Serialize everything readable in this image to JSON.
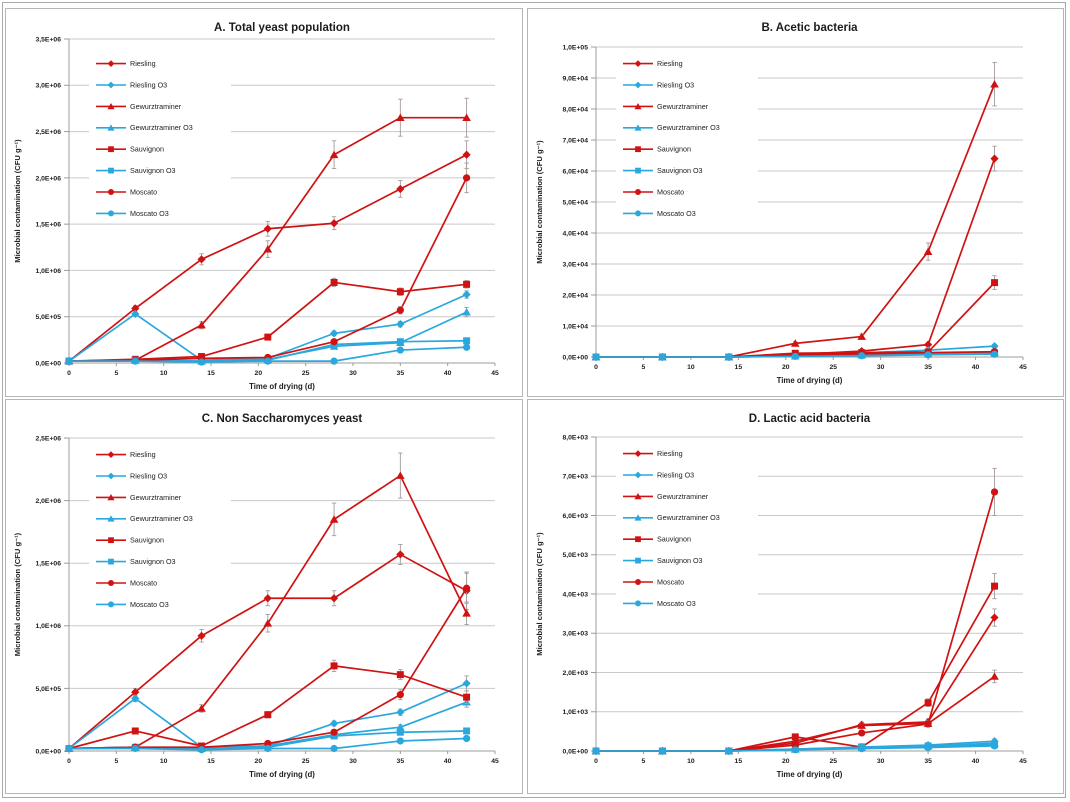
{
  "figure": {
    "background": "#ffffff",
    "outer_border_color": "#a9a9a9",
    "panel_border_color": "#b5b5b5"
  },
  "colors": {
    "red": "#d01212",
    "blue": "#2aa8dd",
    "grid": "#c9c9c9",
    "axis": "#9c9c9c",
    "error": "#a59a9a",
    "text": "#1c1c1c"
  },
  "chart_data": [
    {
      "type": "line",
      "title": "A. Total yeast population",
      "xlabel": "Time of drying (d)",
      "ylabel": "Microbial contamination (CFU g⁻¹)",
      "x": [
        0,
        7,
        14,
        21,
        28,
        35,
        42
      ],
      "xlim": [
        0,
        45
      ],
      "xticks": [
        0,
        5,
        10,
        15,
        20,
        25,
        30,
        35,
        40,
        45
      ],
      "ylim": [
        0,
        3500000
      ],
      "yticks": [
        0,
        500000,
        1000000,
        1500000,
        2000000,
        2500000,
        3000000,
        3500000
      ],
      "ytick_labels": [
        "0,0E+00",
        "5,0E+05",
        "1,0E+06",
        "1,5E+06",
        "2,0E+06",
        "2,5E+06",
        "3,0E+06",
        "3,5E+06"
      ],
      "grid": "horizontal",
      "legend_position": "upper-left-inside",
      "series": [
        {
          "name": "Riesling",
          "color_key": "red",
          "marker": "diamond",
          "values": [
            20000,
            590000,
            1120000,
            1450000,
            1510000,
            1880000,
            2250000
          ],
          "err": [
            0,
            30000,
            60000,
            80000,
            70000,
            90000,
            150000
          ]
        },
        {
          "name": "Riesling O3",
          "color_key": "blue",
          "marker": "diamond",
          "values": [
            20000,
            530000,
            30000,
            50000,
            320000,
            420000,
            740000
          ],
          "err": [
            0,
            20000,
            0,
            0,
            25000,
            30000,
            40000
          ]
        },
        {
          "name": "Gewurztraminer",
          "color_key": "red",
          "marker": "triangle",
          "values": [
            20000,
            30000,
            410000,
            1230000,
            2250000,
            2650000,
            2650000
          ],
          "err": [
            0,
            0,
            40000,
            90000,
            150000,
            200000,
            210000
          ]
        },
        {
          "name": "Gewurztraminer O3",
          "color_key": "blue",
          "marker": "triangle",
          "values": [
            20000,
            30000,
            20000,
            40000,
            180000,
            220000,
            550000
          ],
          "err": [
            0,
            0,
            0,
            0,
            20000,
            25000,
            50000
          ]
        },
        {
          "name": "Sauvignon",
          "color_key": "red",
          "marker": "square",
          "values": [
            20000,
            40000,
            70000,
            280000,
            870000,
            770000,
            850000
          ],
          "err": [
            0,
            0,
            0,
            25000,
            45000,
            40000,
            40000
          ]
        },
        {
          "name": "Sauvignon O3",
          "color_key": "blue",
          "marker": "square",
          "values": [
            20000,
            30000,
            20000,
            30000,
            200000,
            230000,
            240000
          ],
          "err": [
            0,
            0,
            0,
            0,
            20000,
            20000,
            25000
          ]
        },
        {
          "name": "Moscato",
          "color_key": "red",
          "marker": "circle",
          "values": [
            20000,
            30000,
            50000,
            60000,
            230000,
            570000,
            2000000
          ],
          "err": [
            0,
            0,
            0,
            0,
            25000,
            40000,
            160000
          ]
        },
        {
          "name": "Moscato O3",
          "color_key": "blue",
          "marker": "circle",
          "values": [
            20000,
            20000,
            10000,
            20000,
            20000,
            140000,
            170000
          ],
          "err": [
            0,
            0,
            0,
            0,
            0,
            15000,
            20000
          ]
        }
      ]
    },
    {
      "type": "line",
      "title": "B. Acetic bacteria",
      "xlabel": "Time of drying (d)",
      "ylabel": "Microbial contamination (CFU g⁻¹)",
      "x": [
        0,
        7,
        14,
        21,
        28,
        35,
        42
      ],
      "xlim": [
        0,
        45
      ],
      "xticks": [
        0,
        5,
        10,
        15,
        20,
        25,
        30,
        35,
        40,
        45
      ],
      "ylim": [
        0,
        100000
      ],
      "yticks": [
        0,
        10000,
        20000,
        30000,
        40000,
        50000,
        60000,
        70000,
        80000,
        90000,
        100000
      ],
      "ytick_labels": [
        "0,0E+00",
        "1,0E+04",
        "2,0E+04",
        "3,0E+04",
        "4,0E+04",
        "5,0E+04",
        "6,0E+04",
        "7,0E+04",
        "8,0E+04",
        "9,0E+04",
        "1,0E+05"
      ],
      "grid": "horizontal",
      "legend_position": "upper-left-inside",
      "series": [
        {
          "name": "Riesling",
          "color_key": "red",
          "marker": "diamond",
          "values": [
            0,
            0,
            0,
            800,
            1900,
            4000,
            64000
          ],
          "err": [
            0,
            0,
            0,
            0,
            300,
            500,
            4000
          ]
        },
        {
          "name": "Riesling O3",
          "color_key": "blue",
          "marker": "diamond",
          "values": [
            0,
            0,
            0,
            400,
            1300,
            2200,
            3500
          ],
          "err": [
            0,
            0,
            0,
            0,
            0,
            0,
            500
          ]
        },
        {
          "name": "Gewurztraminer",
          "color_key": "red",
          "marker": "triangle",
          "values": [
            0,
            0,
            0,
            4400,
            6600,
            34000,
            88000
          ],
          "err": [
            0,
            0,
            0,
            500,
            800,
            2800,
            7000
          ]
        },
        {
          "name": "Gewurztraminer O3",
          "color_key": "blue",
          "marker": "triangle",
          "values": [
            0,
            0,
            0,
            300,
            700,
            1000,
            1400
          ],
          "err": [
            0,
            0,
            0,
            0,
            0,
            0,
            300
          ]
        },
        {
          "name": "Sauvignon",
          "color_key": "red",
          "marker": "square",
          "values": [
            0,
            0,
            0,
            1200,
            1400,
            1600,
            24000
          ],
          "err": [
            0,
            0,
            0,
            0,
            0,
            300,
            2200
          ]
        },
        {
          "name": "Sauvignon O3",
          "color_key": "blue",
          "marker": "square",
          "values": [
            0,
            0,
            0,
            300,
            600,
            900,
            1300
          ],
          "err": [
            0,
            0,
            0,
            0,
            0,
            0,
            200
          ]
        },
        {
          "name": "Moscato",
          "color_key": "red",
          "marker": "circle",
          "values": [
            0,
            0,
            0,
            600,
            1000,
            1400,
            1700
          ],
          "err": [
            0,
            0,
            0,
            0,
            0,
            0,
            300
          ]
        },
        {
          "name": "Moscato O3",
          "color_key": "blue",
          "marker": "circle",
          "values": [
            0,
            0,
            0,
            200,
            400,
            700,
            900
          ],
          "err": [
            0,
            0,
            0,
            0,
            0,
            0,
            0
          ]
        }
      ]
    },
    {
      "type": "line",
      "title": "C. Non Saccharomyces yeast",
      "xlabel": "Time of drying (d)",
      "ylabel": "Microbial contamination (CFU g⁻¹)",
      "x": [
        0,
        7,
        14,
        21,
        28,
        35,
        42
      ],
      "xlim": [
        0,
        45
      ],
      "xticks": [
        0,
        5,
        10,
        15,
        20,
        25,
        30,
        35,
        40,
        45
      ],
      "ylim": [
        0,
        2500000
      ],
      "yticks": [
        0,
        500000,
        1000000,
        1500000,
        2000000,
        2500000
      ],
      "ytick_labels": [
        "0,0E+00",
        "5,0E+05",
        "1,0E+06",
        "1,5E+06",
        "2,0E+06",
        "2,5E+06"
      ],
      "grid": "horizontal",
      "legend_position": "upper-left-inside",
      "series": [
        {
          "name": "Riesling",
          "color_key": "red",
          "marker": "diamond",
          "values": [
            20000,
            470000,
            920000,
            1220000,
            1220000,
            1570000,
            1280000
          ],
          "err": [
            0,
            30000,
            50000,
            60000,
            60000,
            80000,
            150000
          ]
        },
        {
          "name": "Riesling O3",
          "color_key": "blue",
          "marker": "diamond",
          "values": [
            20000,
            420000,
            30000,
            40000,
            220000,
            310000,
            540000
          ],
          "err": [
            0,
            25000,
            0,
            0,
            20000,
            25000,
            60000
          ]
        },
        {
          "name": "Gewurztraminer",
          "color_key": "red",
          "marker": "triangle",
          "values": [
            20000,
            30000,
            340000,
            1020000,
            1850000,
            2200000,
            1100000
          ],
          "err": [
            0,
            0,
            30000,
            70000,
            130000,
            180000,
            90000
          ]
        },
        {
          "name": "Gewurztraminer O3",
          "color_key": "blue",
          "marker": "triangle",
          "values": [
            20000,
            30000,
            20000,
            40000,
            130000,
            190000,
            390000
          ],
          "err": [
            0,
            0,
            0,
            0,
            0,
            20000,
            40000
          ]
        },
        {
          "name": "Sauvignon",
          "color_key": "red",
          "marker": "square",
          "values": [
            20000,
            160000,
            40000,
            290000,
            680000,
            610000,
            430000
          ],
          "err": [
            0,
            20000,
            0,
            25000,
            45000,
            40000,
            50000
          ]
        },
        {
          "name": "Sauvignon O3",
          "color_key": "blue",
          "marker": "square",
          "values": [
            20000,
            30000,
            20000,
            30000,
            120000,
            150000,
            160000
          ],
          "err": [
            0,
            0,
            0,
            0,
            0,
            0,
            20000
          ]
        },
        {
          "name": "Moscato",
          "color_key": "red",
          "marker": "circle",
          "values": [
            20000,
            30000,
            30000,
            60000,
            150000,
            450000,
            1300000
          ],
          "err": [
            0,
            0,
            0,
            0,
            20000,
            40000,
            120000
          ]
        },
        {
          "name": "Moscato O3",
          "color_key": "blue",
          "marker": "circle",
          "values": [
            20000,
            20000,
            10000,
            20000,
            20000,
            80000,
            100000
          ],
          "err": [
            0,
            0,
            0,
            0,
            0,
            0,
            15000
          ]
        }
      ]
    },
    {
      "type": "line",
      "title": "D. Lactic acid bacteria",
      "xlabel": "Time of drying (d)",
      "ylabel": "Microbial contamination (CFU g⁻¹)",
      "x": [
        0,
        7,
        14,
        21,
        28,
        35,
        42
      ],
      "xlim": [
        0,
        45
      ],
      "xticks": [
        0,
        5,
        10,
        15,
        20,
        25,
        30,
        35,
        40,
        45
      ],
      "ylim": [
        0,
        8000
      ],
      "yticks": [
        0,
        1000,
        2000,
        3000,
        4000,
        5000,
        6000,
        7000,
        8000
      ],
      "ytick_labels": [
        "0,0E+00",
        "1,0E+03",
        "2,0E+03",
        "3,0E+03",
        "4,0E+03",
        "5,0E+03",
        "6,0E+03",
        "7,0E+03",
        "8,0E+03"
      ],
      "grid": "horizontal",
      "legend_position": "upper-left-inside",
      "series": [
        {
          "name": "Riesling",
          "color_key": "red",
          "marker": "diamond",
          "values": [
            0,
            0,
            0,
            200,
            670,
            740,
            3400
          ],
          "err": [
            0,
            0,
            0,
            0,
            60,
            80,
            220
          ]
        },
        {
          "name": "Riesling O3",
          "color_key": "blue",
          "marker": "diamond",
          "values": [
            0,
            0,
            0,
            50,
            100,
            150,
            250
          ],
          "err": [
            0,
            0,
            0,
            0,
            0,
            0,
            60
          ]
        },
        {
          "name": "Gewurztraminer",
          "color_key": "red",
          "marker": "triangle",
          "values": [
            0,
            0,
            0,
            250,
            650,
            700,
            1900
          ],
          "err": [
            0,
            0,
            0,
            0,
            60,
            80,
            160
          ]
        },
        {
          "name": "Gewurztraminer O3",
          "color_key": "blue",
          "marker": "triangle",
          "values": [
            0,
            0,
            0,
            40,
            80,
            120,
            200
          ],
          "err": [
            0,
            0,
            0,
            0,
            0,
            0,
            0
          ]
        },
        {
          "name": "Sauvignon",
          "color_key": "red",
          "marker": "square",
          "values": [
            0,
            0,
            0,
            360,
            100,
            1230,
            4200
          ],
          "err": [
            0,
            0,
            0,
            40,
            0,
            100,
            320
          ]
        },
        {
          "name": "Sauvignon O3",
          "color_key": "blue",
          "marker": "square",
          "values": [
            0,
            0,
            0,
            50,
            90,
            130,
            160
          ],
          "err": [
            0,
            0,
            0,
            0,
            0,
            0,
            0
          ]
        },
        {
          "name": "Moscato",
          "color_key": "red",
          "marker": "circle",
          "values": [
            0,
            0,
            0,
            150,
            460,
            690,
            6600
          ],
          "err": [
            0,
            0,
            0,
            0,
            50,
            80,
            600
          ]
        },
        {
          "name": "Moscato O3",
          "color_key": "blue",
          "marker": "circle",
          "values": [
            0,
            0,
            0,
            30,
            60,
            90,
            130
          ],
          "err": [
            0,
            0,
            0,
            0,
            0,
            0,
            0
          ]
        }
      ]
    }
  ]
}
